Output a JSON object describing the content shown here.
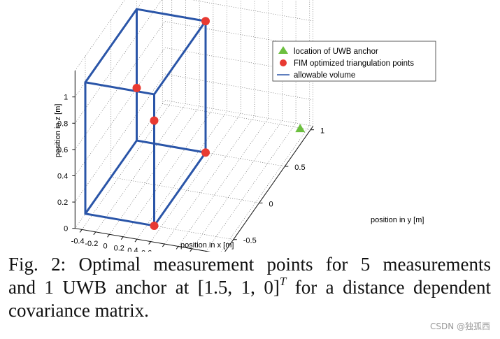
{
  "chart_data": {
    "type": "scatter3d",
    "x_label": "position in x [m]",
    "y_label": "position in y [m]",
    "z_label": "position in z [m]",
    "x_ticks": [
      "-0.4",
      "-0.2",
      "0",
      "0.2",
      "0.4",
      "0.6",
      "0.8",
      "1",
      "1.2",
      "1.4",
      "1.6"
    ],
    "y_ticks": [
      "-0.5",
      "0",
      "0.5",
      "1"
    ],
    "z_ticks": [
      "0",
      "0.2",
      "0.4",
      "0.6",
      "0.8",
      "1"
    ],
    "legend": [
      {
        "label": "location of UWB anchor",
        "color": "#6cbf3f",
        "marker": "triangle"
      },
      {
        "label": "FIM optimized triangulation points",
        "color": "#e83a32",
        "marker": "circle"
      },
      {
        "label": "allowable volume",
        "color": "#2a55a8",
        "marker": "line"
      }
    ],
    "anchor": {
      "x": 1.5,
      "y": 1,
      "z": 0
    },
    "points": [
      {
        "x": 0.5,
        "y": -0.5,
        "z": 0
      },
      {
        "x": 0.5,
        "y": 0.5,
        "z": 0
      },
      {
        "x": -0.5,
        "y": 0.5,
        "z": 0.4
      },
      {
        "x": 0.5,
        "y": -0.5,
        "z": 0.8
      },
      {
        "x": 0.5,
        "y": 0.5,
        "z": 1
      }
    ],
    "volume": {
      "x": [
        -0.5,
        0.5
      ],
      "y": [
        -0.5,
        0.5
      ],
      "z": [
        0,
        1
      ]
    }
  },
  "caption": {
    "line1": "Fig. 2: Optimal measurement points for 5 measurements",
    "line2_pre": "and 1 UWB anchor at",
    "line2_math": "[1.5, 1, 0]",
    "line2_sup": "T",
    "line2_post": "for a distance dependent",
    "line3": "covariance matrix."
  },
  "watermark": "CSDN @独孤西"
}
